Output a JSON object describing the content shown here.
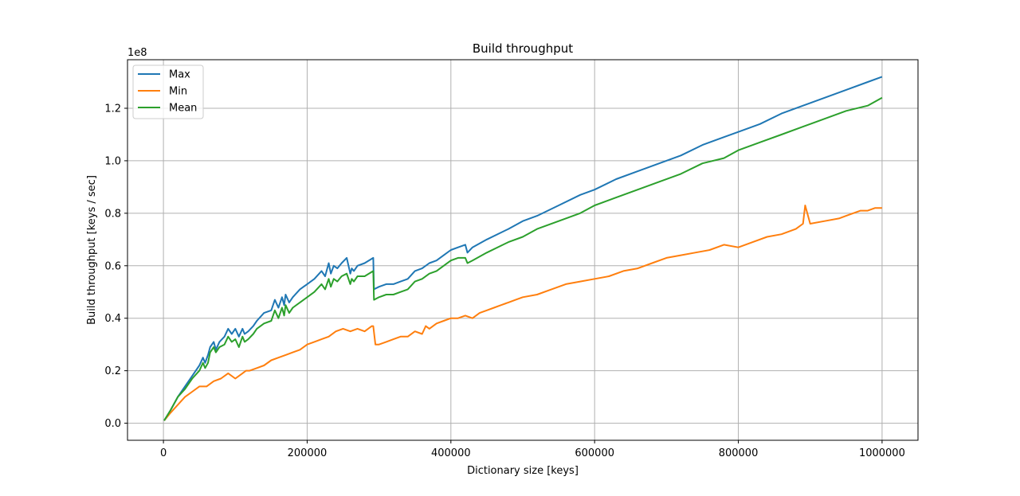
{
  "chart_data": {
    "type": "line",
    "title": "Build throughput",
    "xlabel": "Dictionary size [keys]",
    "ylabel": "Build throughput [keys / sec]",
    "y_scale_label": "1e8",
    "xlim": [
      -50000,
      1050000
    ],
    "ylim": [
      -0.065,
      1.385
    ],
    "y_unit_multiplier": 100000000,
    "xticks": [
      0,
      200000,
      400000,
      600000,
      800000,
      1000000
    ],
    "xtick_labels": [
      "0",
      "200000",
      "400000",
      "600000",
      "800000",
      "1000000"
    ],
    "yticks": [
      0.0,
      0.2,
      0.4,
      0.6,
      0.8,
      1.0,
      1.2
    ],
    "ytick_labels": [
      "0.0",
      "0.2",
      "0.4",
      "0.6",
      "0.8",
      "1.0",
      "1.2"
    ],
    "grid": true,
    "legend_position": "top-left",
    "series": [
      {
        "name": "Max",
        "color": "#1f77b4",
        "x": [
          1000,
          10000,
          20000,
          30000,
          40000,
          50000,
          55000,
          58000,
          62000,
          65000,
          70000,
          73000,
          78000,
          85000,
          90000,
          95000,
          100000,
          105000,
          110000,
          113000,
          118000,
          125000,
          130000,
          140000,
          150000,
          155000,
          160000,
          165000,
          168000,
          170000,
          175000,
          180000,
          190000,
          200000,
          210000,
          220000,
          225000,
          230000,
          233000,
          237000,
          242000,
          248000,
          255000,
          260000,
          262000,
          265000,
          270000,
          280000,
          292000,
          293000,
          300000,
          310000,
          320000,
          330000,
          340000,
          350000,
          360000,
          370000,
          380000,
          390000,
          400000,
          410000,
          420000,
          423000,
          430000,
          450000,
          480000,
          500000,
          520000,
          550000,
          580000,
          600000,
          630000,
          660000,
          690000,
          720000,
          750000,
          780000,
          800000,
          830000,
          860000,
          890000,
          920000,
          950000,
          980000,
          1000000
        ],
        "y": [
          0.01,
          0.05,
          0.1,
          0.14,
          0.18,
          0.22,
          0.25,
          0.23,
          0.26,
          0.29,
          0.31,
          0.28,
          0.31,
          0.33,
          0.36,
          0.34,
          0.36,
          0.33,
          0.36,
          0.34,
          0.35,
          0.37,
          0.39,
          0.42,
          0.43,
          0.47,
          0.44,
          0.48,
          0.45,
          0.49,
          0.46,
          0.48,
          0.51,
          0.53,
          0.55,
          0.58,
          0.56,
          0.61,
          0.57,
          0.6,
          0.59,
          0.61,
          0.63,
          0.57,
          0.59,
          0.58,
          0.6,
          0.61,
          0.63,
          0.51,
          0.52,
          0.53,
          0.53,
          0.54,
          0.55,
          0.58,
          0.59,
          0.61,
          0.62,
          0.64,
          0.66,
          0.67,
          0.68,
          0.65,
          0.67,
          0.7,
          0.74,
          0.77,
          0.79,
          0.83,
          0.87,
          0.89,
          0.93,
          0.96,
          0.99,
          1.02,
          1.06,
          1.09,
          1.11,
          1.14,
          1.18,
          1.21,
          1.24,
          1.27,
          1.3,
          1.32
        ]
      },
      {
        "name": "Min",
        "color": "#ff7f0e",
        "x": [
          1000,
          10000,
          20000,
          30000,
          40000,
          50000,
          60000,
          70000,
          80000,
          90000,
          100000,
          110000,
          115000,
          120000,
          130000,
          140000,
          150000,
          160000,
          170000,
          180000,
          190000,
          200000,
          210000,
          220000,
          230000,
          240000,
          250000,
          260000,
          270000,
          280000,
          290000,
          292000,
          295000,
          300000,
          310000,
          320000,
          330000,
          340000,
          350000,
          360000,
          365000,
          370000,
          380000,
          390000,
          400000,
          410000,
          420000,
          430000,
          440000,
          450000,
          460000,
          470000,
          480000,
          490000,
          500000,
          520000,
          540000,
          560000,
          580000,
          600000,
          620000,
          640000,
          660000,
          680000,
          700000,
          720000,
          740000,
          760000,
          780000,
          800000,
          820000,
          840000,
          860000,
          880000,
          890000,
          893000,
          900000,
          920000,
          940000,
          950000,
          960000,
          970000,
          980000,
          990000,
          1000000
        ],
        "y": [
          0.01,
          0.04,
          0.07,
          0.1,
          0.12,
          0.14,
          0.14,
          0.16,
          0.17,
          0.19,
          0.17,
          0.19,
          0.2,
          0.2,
          0.21,
          0.22,
          0.24,
          0.25,
          0.26,
          0.27,
          0.28,
          0.3,
          0.31,
          0.32,
          0.33,
          0.35,
          0.36,
          0.35,
          0.36,
          0.35,
          0.37,
          0.37,
          0.3,
          0.3,
          0.31,
          0.32,
          0.33,
          0.33,
          0.35,
          0.34,
          0.37,
          0.36,
          0.38,
          0.39,
          0.4,
          0.4,
          0.41,
          0.4,
          0.42,
          0.43,
          0.44,
          0.45,
          0.46,
          0.47,
          0.48,
          0.49,
          0.51,
          0.53,
          0.54,
          0.55,
          0.56,
          0.58,
          0.59,
          0.61,
          0.63,
          0.64,
          0.65,
          0.66,
          0.68,
          0.67,
          0.69,
          0.71,
          0.72,
          0.74,
          0.76,
          0.83,
          0.76,
          0.77,
          0.78,
          0.79,
          0.8,
          0.81,
          0.81,
          0.82,
          0.82
        ]
      },
      {
        "name": "Mean",
        "color": "#2ca02c",
        "x": [
          1000,
          10000,
          20000,
          30000,
          40000,
          50000,
          55000,
          58000,
          62000,
          65000,
          70000,
          73000,
          78000,
          85000,
          90000,
          95000,
          100000,
          105000,
          110000,
          113000,
          118000,
          125000,
          130000,
          140000,
          150000,
          155000,
          160000,
          165000,
          168000,
          170000,
          175000,
          180000,
          190000,
          200000,
          210000,
          220000,
          225000,
          230000,
          233000,
          237000,
          242000,
          248000,
          255000,
          260000,
          262000,
          265000,
          270000,
          280000,
          292000,
          293000,
          300000,
          310000,
          320000,
          330000,
          340000,
          350000,
          360000,
          370000,
          380000,
          390000,
          400000,
          410000,
          420000,
          423000,
          430000,
          450000,
          480000,
          500000,
          520000,
          550000,
          580000,
          600000,
          630000,
          660000,
          690000,
          720000,
          750000,
          780000,
          800000,
          830000,
          860000,
          890000,
          920000,
          950000,
          980000,
          1000000
        ],
        "y": [
          0.01,
          0.05,
          0.1,
          0.13,
          0.17,
          0.2,
          0.23,
          0.21,
          0.23,
          0.27,
          0.29,
          0.27,
          0.29,
          0.3,
          0.33,
          0.31,
          0.32,
          0.29,
          0.33,
          0.31,
          0.32,
          0.34,
          0.36,
          0.38,
          0.39,
          0.43,
          0.4,
          0.44,
          0.41,
          0.45,
          0.42,
          0.44,
          0.46,
          0.48,
          0.5,
          0.53,
          0.51,
          0.55,
          0.52,
          0.55,
          0.54,
          0.56,
          0.57,
          0.53,
          0.55,
          0.54,
          0.56,
          0.56,
          0.58,
          0.47,
          0.48,
          0.49,
          0.49,
          0.5,
          0.51,
          0.54,
          0.55,
          0.57,
          0.58,
          0.6,
          0.62,
          0.63,
          0.63,
          0.61,
          0.62,
          0.65,
          0.69,
          0.71,
          0.74,
          0.77,
          0.8,
          0.83,
          0.86,
          0.89,
          0.92,
          0.95,
          0.99,
          1.01,
          1.04,
          1.07,
          1.1,
          1.13,
          1.16,
          1.19,
          1.21,
          1.24
        ]
      }
    ]
  }
}
